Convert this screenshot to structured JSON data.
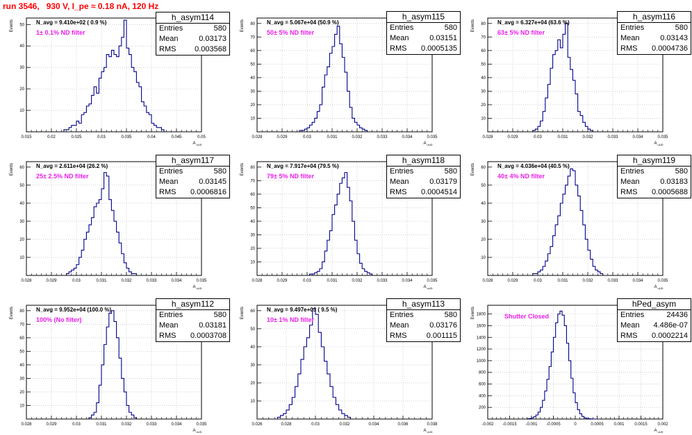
{
  "title": "run 3546,   930 V, I_pe ≈ 0.18 nA, 120 Hz",
  "colors": {
    "title": "#ff0000",
    "hist": "#00008b",
    "annotation": "#e81ee8",
    "grid": "#b0b0b0"
  },
  "chart_data": [
    {
      "type": "histogram",
      "name": "h_asym114",
      "entries": "580",
      "mean": "0.03173",
      "rms": "0.003568",
      "navg": "N_avg = 9.410e+02 ( 0.9 %)",
      "filter": "1± 0.1% ND filter",
      "ylabel": "Events",
      "xlabel": "A_uUD",
      "grid": true,
      "xlim": [
        0.015,
        0.05
      ],
      "ylim": [
        0,
        53
      ],
      "xticks": [
        0.015,
        0.02,
        0.025,
        0.03,
        0.035,
        0.04,
        0.045,
        0.05
      ],
      "xtick_labels": [
        "0.015",
        "0.02",
        "0.025",
        "0.03",
        "0.035",
        "0.04",
        "0.045",
        "0.05"
      ],
      "yticks": [
        10,
        20,
        30,
        40,
        50
      ],
      "ytick_labels": [
        "10",
        "20",
        "30",
        "40",
        "50"
      ],
      "bin_start": 0.0225,
      "bin_width": 0.0005,
      "counts": [
        1,
        1,
        2,
        3,
        3,
        5,
        4,
        8,
        9,
        12,
        13,
        17,
        21,
        18,
        25,
        28,
        30,
        36,
        35,
        38,
        36,
        35,
        40,
        44,
        52,
        39,
        36,
        30,
        28,
        23,
        21,
        14,
        12,
        9,
        8,
        4,
        3,
        2,
        2,
        1
      ]
    },
    {
      "type": "histogram",
      "name": "h_asym115",
      "entries": "580",
      "mean": "0.03151",
      "rms": "0.0005135",
      "navg": "N_avg = 5.067e+04 (50.9 %)",
      "filter": "50± 5% ND filter",
      "ylabel": "Events",
      "xlabel": "A_uUD",
      "grid": true,
      "xlim": [
        0.028,
        0.035
      ],
      "ylim": [
        0,
        84
      ],
      "xticks": [
        0.028,
        0.029,
        0.03,
        0.031,
        0.032,
        0.033,
        0.034,
        0.035
      ],
      "xtick_labels": [
        "0.028",
        "0.029",
        "0.03",
        "0.031",
        "0.032",
        "0.033",
        "0.034",
        "0.035"
      ],
      "yticks": [
        10,
        20,
        30,
        40,
        50,
        60,
        70,
        80
      ],
      "ytick_labels": [
        "10",
        "20",
        "30",
        "40",
        "50",
        "60",
        "70",
        "80"
      ],
      "bin_start": 0.0297,
      "bin_width": 0.0001,
      "counts": [
        1,
        1,
        2,
        3,
        5,
        7,
        10,
        15,
        20,
        33,
        42,
        48,
        58,
        63,
        72,
        78,
        65,
        55,
        44,
        30,
        18,
        10,
        7,
        5,
        3,
        2,
        1
      ]
    },
    {
      "type": "histogram",
      "name": "h_asym116",
      "entries": "580",
      "mean": "0.03143",
      "rms": "0.0004736",
      "navg": "N_avg = 6.327e+04 (63.6 %)",
      "filter": "63± 5% ND filter",
      "ylabel": "Events",
      "xlabel": "A_uUD",
      "grid": true,
      "xlim": [
        0.028,
        0.035
      ],
      "ylim": [
        0,
        84
      ],
      "xticks": [
        0.028,
        0.029,
        0.03,
        0.031,
        0.032,
        0.033,
        0.034,
        0.035
      ],
      "xtick_labels": [
        "0.028",
        "0.029",
        "0.03",
        "0.031",
        "0.032",
        "0.033",
        "0.034",
        "0.035"
      ],
      "yticks": [
        10,
        20,
        30,
        40,
        50,
        60,
        70,
        80
      ],
      "ytick_labels": [
        "10",
        "20",
        "30",
        "40",
        "50",
        "60",
        "70",
        "80"
      ],
      "bin_start": 0.0298,
      "bin_width": 0.0001,
      "counts": [
        1,
        2,
        4,
        8,
        15,
        25,
        35,
        47,
        57,
        60,
        68,
        62,
        72,
        80,
        55,
        46,
        38,
        28,
        15,
        12,
        7,
        4,
        2,
        1
      ]
    },
    {
      "type": "histogram",
      "name": "h_asym117",
      "entries": "580",
      "mean": "0.03145",
      "rms": "0.0006816",
      "navg": "N_avg = 2.611e+04 (26.2 %)",
      "filter": "25± 2.5% ND filter",
      "ylabel": "Events",
      "xlabel": "A_uUD",
      "grid": true,
      "xlim": [
        0.028,
        0.035
      ],
      "ylim": [
        0,
        63
      ],
      "xticks": [
        0.028,
        0.029,
        0.03,
        0.031,
        0.032,
        0.033,
        0.034,
        0.035
      ],
      "xtick_labels": [
        "0.028",
        "0.029",
        "0.03",
        "0.031",
        "0.032",
        "0.033",
        "0.034",
        "0.035"
      ],
      "yticks": [
        10,
        20,
        30,
        40,
        50,
        60
      ],
      "ytick_labels": [
        "10",
        "20",
        "30",
        "40",
        "50",
        "60"
      ],
      "bin_start": 0.0296,
      "bin_width": 0.0001,
      "counts": [
        1,
        2,
        3,
        4,
        6,
        10,
        14,
        20,
        24,
        28,
        32,
        38,
        40,
        42,
        48,
        57,
        55,
        42,
        36,
        30,
        24,
        18,
        12,
        7,
        4,
        2,
        1,
        1
      ]
    },
    {
      "type": "histogram",
      "name": "h_asym118",
      "entries": "580",
      "mean": "0.03179",
      "rms": "0.0004514",
      "navg": "N_avg = 7.917e+04 (79.5 %)",
      "filter": "79± 5% ND filter",
      "ylabel": "Events",
      "xlabel": "A_uUD",
      "grid": true,
      "xlim": [
        0.028,
        0.035
      ],
      "ylim": [
        0,
        84
      ],
      "xticks": [
        0.028,
        0.029,
        0.03,
        0.031,
        0.032,
        0.033,
        0.034,
        0.035
      ],
      "xtick_labels": [
        "0.028",
        "0.029",
        "0.03",
        "0.031",
        "0.032",
        "0.033",
        "0.034",
        "0.035"
      ],
      "yticks": [
        10,
        20,
        30,
        40,
        50,
        60,
        70,
        80
      ],
      "ytick_labels": [
        "10",
        "20",
        "30",
        "40",
        "50",
        "60",
        "70",
        "80"
      ],
      "bin_start": 0.0301,
      "bin_width": 0.0001,
      "counts": [
        1,
        1,
        2,
        3,
        5,
        10,
        18,
        26,
        33,
        45,
        52,
        60,
        68,
        72,
        76,
        65,
        55,
        40,
        26,
        16,
        9,
        5,
        3,
        2,
        1
      ]
    },
    {
      "type": "histogram",
      "name": "h_asym119",
      "entries": "580",
      "mean": "0.03183",
      "rms": "0.0005688",
      "navg": "N_avg = 4.036e+04 (40.5 %)",
      "filter": "40± 4% ND filter",
      "ylabel": "Events",
      "xlabel": "A_uUD",
      "grid": true,
      "xlim": [
        0.028,
        0.035
      ],
      "ylim": [
        0,
        63
      ],
      "xticks": [
        0.028,
        0.029,
        0.03,
        0.031,
        0.032,
        0.033,
        0.034,
        0.035
      ],
      "xtick_labels": [
        "0.028",
        "0.029",
        "0.03",
        "0.031",
        "0.032",
        "0.033",
        "0.034",
        "0.035"
      ],
      "yticks": [
        10,
        20,
        30,
        40,
        50,
        60
      ],
      "ytick_labels": [
        "10",
        "20",
        "30",
        "40",
        "50",
        "60"
      ],
      "bin_start": 0.0298,
      "bin_width": 0.0001,
      "counts": [
        1,
        1,
        2,
        3,
        5,
        8,
        12,
        16,
        22,
        28,
        33,
        40,
        45,
        50,
        55,
        59,
        58,
        50,
        44,
        36,
        28,
        20,
        14,
        9,
        5,
        3,
        2,
        1
      ]
    },
    {
      "type": "histogram",
      "name": "h_asym112",
      "entries": "580",
      "mean": "0.03181",
      "rms": "0.0003708",
      "navg": "N_avg = 9.952e+04 (100.0 %)",
      "filter": "100% (No filter)",
      "ylabel": "Events",
      "xlabel": "A_uUD",
      "grid": true,
      "xlim": [
        0.028,
        0.035
      ],
      "ylim": [
        0,
        84
      ],
      "xticks": [
        0.028,
        0.029,
        0.03,
        0.031,
        0.032,
        0.033,
        0.034,
        0.035
      ],
      "xtick_labels": [
        "0.028",
        "0.029",
        "0.03",
        "0.031",
        "0.032",
        "0.033",
        "0.034",
        "0.035"
      ],
      "yticks": [
        10,
        20,
        30,
        40,
        50,
        60,
        70,
        80
      ],
      "ytick_labels": [
        "10",
        "20",
        "30",
        "40",
        "50",
        "60",
        "70",
        "80"
      ],
      "bin_start": 0.0305,
      "bin_width": 0.0001,
      "counts": [
        1,
        3,
        5,
        12,
        25,
        40,
        55,
        68,
        78,
        80,
        72,
        60,
        45,
        30,
        20,
        10,
        5,
        3,
        1
      ]
    },
    {
      "type": "histogram",
      "name": "h_asym113",
      "entries": "580",
      "mean": "0.03176",
      "rms": "0.001115",
      "navg": "N_avg = 9.497e+03 ( 9.5 %)",
      "filter": "10± 1% ND filter",
      "ylabel": "Events",
      "xlabel": "A_uUD",
      "grid": true,
      "xlim": [
        0.026,
        0.038
      ],
      "ylim": [
        0,
        63
      ],
      "xticks": [
        0.026,
        0.028,
        0.03,
        0.032,
        0.034,
        0.036,
        0.038
      ],
      "xtick_labels": [
        "0.026",
        "0.028",
        "0.03",
        "0.032",
        "0.034",
        "0.036",
        "0.038"
      ],
      "yticks": [
        10,
        20,
        30,
        40,
        50,
        60
      ],
      "ytick_labels": [
        "10",
        "20",
        "30",
        "40",
        "50",
        "60"
      ],
      "bin_start": 0.0274,
      "bin_width": 0.0002,
      "counts": [
        1,
        2,
        3,
        5,
        8,
        12,
        18,
        25,
        33,
        40,
        45,
        52,
        61,
        58,
        48,
        40,
        32,
        25,
        18,
        12,
        8,
        5,
        3,
        2,
        1
      ]
    },
    {
      "type": "histogram",
      "name": "hPed_asym",
      "entries": "24436",
      "mean": "4.486e-07",
      "rms": "0.0002214",
      "navg": "",
      "filter": "Shutter Closed",
      "ylabel": "Events",
      "xlabel": "A_uUD",
      "grid": true,
      "xlim": [
        -0.002,
        0.002
      ],
      "ylim": [
        0,
        1950
      ],
      "xticks": [
        -0.002,
        -0.0015,
        -0.001,
        -0.0005,
        0,
        0.0005,
        0.001,
        0.0015,
        0.002
      ],
      "xtick_labels": [
        "-0.002",
        "-0.0015",
        "-0.001",
        "-0.0005",
        "0",
        "0.0005",
        "0.001",
        "0.0015",
        "0.002"
      ],
      "yticks": [
        200,
        400,
        600,
        800,
        1000,
        1200,
        1400,
        1600,
        1800
      ],
      "ytick_labels": [
        "200",
        "400",
        "600",
        "800",
        "1000",
        "1200",
        "1400",
        "1600",
        "1800"
      ],
      "bin_start": -0.0011,
      "bin_width": 5e-05,
      "counts": [
        5,
        10,
        20,
        40,
        70,
        120,
        200,
        320,
        480,
        680,
        900,
        1150,
        1400,
        1650,
        1800,
        1850,
        1780,
        1600,
        1300,
        1000,
        700,
        450,
        280,
        160,
        90,
        45,
        20,
        10,
        5,
        2,
        1
      ]
    }
  ]
}
